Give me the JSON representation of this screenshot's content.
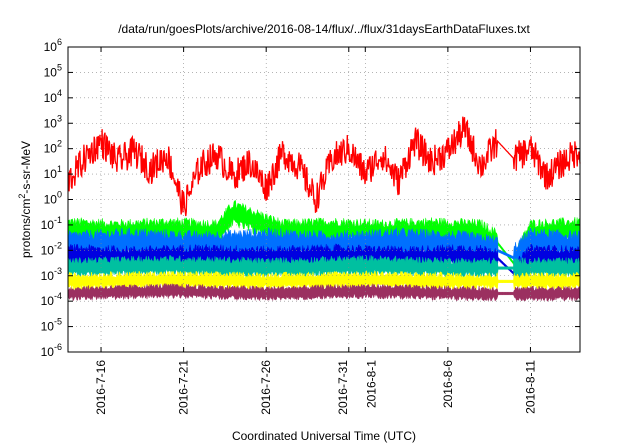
{
  "chart_data": {
    "type": "line",
    "title": "/data/run/goesPlots/archive/2016-08-14/flux/../flux/31daysEarthDataFluxes.txt",
    "xlabel": "Coordinated Universal Time (UTC)",
    "ylabel_parts": {
      "pre": "protons/cm",
      "sup": "2",
      "post": "-s-sr-MeV"
    },
    "y_scale": "log",
    "ylim": [
      1e-06,
      1000000.0
    ],
    "y_ticks": [
      {
        "value": 1e-06,
        "base": "10",
        "exp": "-6"
      },
      {
        "value": 1e-05,
        "base": "10",
        "exp": "-5"
      },
      {
        "value": 0.0001,
        "base": "10",
        "exp": "-4"
      },
      {
        "value": 0.001,
        "base": "10",
        "exp": "-3"
      },
      {
        "value": 0.01,
        "base": "10",
        "exp": "-2"
      },
      {
        "value": 0.1,
        "base": "10",
        "exp": "-1"
      },
      {
        "value": 1,
        "base": "10",
        "exp": "0"
      },
      {
        "value": 10.0,
        "base": "10",
        "exp": "1"
      },
      {
        "value": 100.0,
        "base": "10",
        "exp": "2"
      },
      {
        "value": 1000.0,
        "base": "10",
        "exp": "3"
      },
      {
        "value": 10000.0,
        "base": "10",
        "exp": "4"
      },
      {
        "value": 100000.0,
        "base": "10",
        "exp": "5"
      },
      {
        "value": 1000000.0,
        "base": "10",
        "exp": "6"
      }
    ],
    "xlim": [
      "2016-07-14",
      "2016-08-14"
    ],
    "x_ticks": [
      {
        "date": "2016-07-16",
        "label": "2016-7-16"
      },
      {
        "date": "2016-07-21",
        "label": "2016-7-21"
      },
      {
        "date": "2016-07-26",
        "label": "2016-7-26"
      },
      {
        "date": "2016-07-31",
        "label": "2016-7-31"
      },
      {
        "date": "2016-08-01",
        "label": "2016-8-1"
      },
      {
        "date": "2016-08-06",
        "label": "2016-8-6"
      },
      {
        "date": "2016-08-11",
        "label": "2016-8-11"
      }
    ],
    "grid": true,
    "data_gap": [
      "2016-08-09",
      "2016-08-10"
    ],
    "series": [
      {
        "color": "#ff0000",
        "x": [
          "2016-07-14",
          "2016-07-15",
          "2016-07-16",
          "2016-07-17",
          "2016-07-18",
          "2016-07-19",
          "2016-07-20",
          "2016-07-21",
          "2016-07-22",
          "2016-07-23",
          "2016-07-24",
          "2016-07-25",
          "2016-07-26",
          "2016-07-27",
          "2016-07-28",
          "2016-07-29",
          "2016-07-30",
          "2016-07-31",
          "2016-08-01",
          "2016-08-02",
          "2016-08-03",
          "2016-08-04",
          "2016-08-05",
          "2016-08-06",
          "2016-08-07",
          "2016-08-08",
          "2016-08-09",
          "2016-08-10",
          "2016-08-11",
          "2016-08-12",
          "2016-08-13",
          "2016-08-14"
        ],
        "values": [
          5,
          40,
          200,
          30,
          80,
          15,
          60,
          0.5,
          20,
          60,
          8,
          30,
          3,
          70,
          20,
          1,
          40,
          100,
          10,
          60,
          5,
          200,
          30,
          80,
          600,
          20,
          200,
          40,
          100,
          8,
          30,
          90
        ]
      },
      {
        "color": "#00ff00",
        "x": [
          "2016-07-14",
          "2016-07-17",
          "2016-07-20",
          "2016-07-23",
          "2016-07-24",
          "2016-07-27",
          "2016-07-30",
          "2016-08-02",
          "2016-08-05",
          "2016-08-08",
          "2016-08-09",
          "2016-08-10",
          "2016-08-11",
          "2016-08-14"
        ],
        "values": [
          0.06,
          0.05,
          0.06,
          0.05,
          0.3,
          0.05,
          0.06,
          0.05,
          0.06,
          0.05,
          0.02,
          0.003,
          0.05,
          0.06
        ]
      },
      {
        "color": "#0070ff",
        "x": [
          "2016-07-14",
          "2016-07-18",
          "2016-07-22",
          "2016-07-26",
          "2016-07-30",
          "2016-08-03",
          "2016-08-07",
          "2016-08-09",
          "2016-08-10",
          "2016-08-11",
          "2016-08-14"
        ],
        "values": [
          0.015,
          0.02,
          0.015,
          0.02,
          0.015,
          0.02,
          0.015,
          0.01,
          0.005,
          0.02,
          0.015
        ]
      },
      {
        "color": "#0000e0",
        "x": [
          "2016-07-14",
          "2016-07-18",
          "2016-07-22",
          "2016-07-26",
          "2016-07-30",
          "2016-08-03",
          "2016-08-07",
          "2016-08-09",
          "2016-08-10",
          "2016-08-11",
          "2016-08-14"
        ],
        "values": [
          0.006,
          0.005,
          0.006,
          0.005,
          0.006,
          0.005,
          0.006,
          0.005,
          0.0012,
          0.006,
          0.005
        ]
      },
      {
        "color": "#00c0a0",
        "x": [
          "2016-07-14",
          "2016-07-20",
          "2016-07-26",
          "2016-08-01",
          "2016-08-07",
          "2016-08-09",
          "2016-08-11",
          "2016-08-14"
        ],
        "values": [
          0.002,
          0.0025,
          0.002,
          0.0025,
          0.002,
          0.002,
          0.002,
          0.002
        ]
      },
      {
        "color": "#ffff00",
        "x": [
          "2016-07-14",
          "2016-07-20",
          "2016-07-26",
          "2016-08-01",
          "2016-08-07",
          "2016-08-09",
          "2016-08-11",
          "2016-08-14"
        ],
        "values": [
          0.0006,
          0.0007,
          0.0006,
          0.0007,
          0.0006,
          0.0006,
          0.0006,
          0.0006
        ]
      },
      {
        "color": "#9b3060",
        "x": [
          "2016-07-14",
          "2016-07-20",
          "2016-07-26",
          "2016-08-01",
          "2016-08-07",
          "2016-08-09",
          "2016-08-11",
          "2016-08-14"
        ],
        "values": [
          0.0002,
          0.00025,
          0.0002,
          0.00025,
          0.0002,
          0.0002,
          0.0002,
          0.0002
        ]
      }
    ]
  }
}
